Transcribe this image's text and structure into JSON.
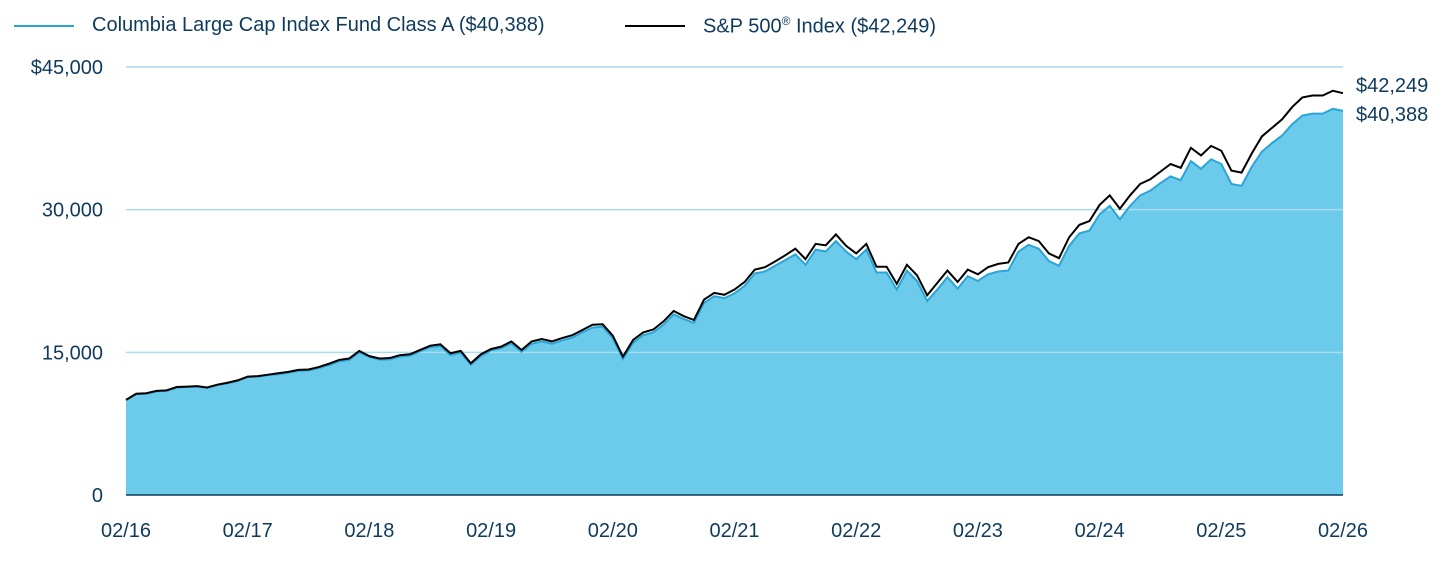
{
  "chart_data": {
    "type": "area",
    "legend": {
      "fund_label": "Columbia Large Cap Index Fund Class A ($40,388)",
      "index_name": "S&P 500",
      "index_mark": "®",
      "index_value": " Index ($42,249)"
    },
    "end_labels": {
      "index": "$42,249",
      "fund": "$40,388"
    },
    "y_ticks": [
      "$45,000",
      "30,000",
      "15,000",
      "0"
    ],
    "y_tick_values": [
      45000,
      30000,
      15000,
      0
    ],
    "ylim": [
      0,
      45000
    ],
    "x_ticks": [
      "02/16",
      "02/17",
      "02/18",
      "02/19",
      "02/20",
      "02/21",
      "02/22",
      "02/23",
      "02/24",
      "02/25",
      "02/26"
    ],
    "colors": {
      "fund_fill": "#6ccaea",
      "fund_line": "#2aa5d8",
      "index_line": "#000000",
      "grid": "#a9dcee",
      "axis": "#0e3a5c",
      "text": "#0e3a5c"
    },
    "series": [
      {
        "name": "Columbia Large Cap Index Fund Class A",
        "start": "02/16",
        "values": [
          10000,
          10600,
          10650,
          10900,
          10950,
          11300,
          11350,
          11400,
          11250,
          11550,
          11750,
          12000,
          12400,
          12450,
          12600,
          12700,
          12850,
          13050,
          13100,
          13350,
          13650,
          14050,
          14200,
          15000,
          14500,
          14250,
          14250,
          14550,
          14650,
          15100,
          15550,
          15650,
          14700,
          14950,
          13700,
          14600,
          15200,
          15450,
          15950,
          15050,
          15900,
          16150,
          15900,
          16250,
          16550,
          17100,
          17600,
          17700,
          16500,
          14300,
          16000,
          16800,
          17100,
          17900,
          19000,
          18500,
          18100,
          20200,
          20900,
          20700,
          21200,
          22000,
          23300,
          23500,
          24100,
          24700,
          25300,
          24200,
          25800,
          25600,
          26700,
          25600,
          24800,
          25800,
          23400,
          23400,
          21600,
          23600,
          22500,
          20400,
          21600,
          22900,
          21700,
          23000,
          22500,
          23200,
          23500,
          23600,
          25600,
          26300,
          25900,
          24600,
          24100,
          26200,
          27500,
          27800,
          29500,
          30400,
          29000,
          30400,
          31500,
          32000,
          32800,
          33500,
          33100,
          35100,
          34300,
          35300,
          34800,
          32700,
          32500,
          34500,
          36100,
          37000,
          37800,
          39000,
          39900,
          40100,
          40100,
          40600,
          40388
        ]
      },
      {
        "name": "S&P 500 Index",
        "start": "02/16",
        "values": [
          10000,
          10650,
          10700,
          10950,
          11000,
          11350,
          11400,
          11450,
          11300,
          11600,
          11800,
          12050,
          12450,
          12500,
          12650,
          12800,
          12950,
          13150,
          13200,
          13450,
          13800,
          14200,
          14350,
          15150,
          14600,
          14350,
          14400,
          14700,
          14800,
          15250,
          15700,
          15850,
          14900,
          15150,
          13850,
          14800,
          15350,
          15600,
          16150,
          15250,
          16150,
          16400,
          16150,
          16500,
          16800,
          17350,
          17900,
          17950,
          16750,
          14550,
          16300,
          17100,
          17400,
          18250,
          19350,
          18800,
          18400,
          20550,
          21250,
          21050,
          21600,
          22400,
          23700,
          23950,
          24550,
          25200,
          25900,
          24800,
          26400,
          26250,
          27400,
          26200,
          25400,
          26400,
          24000,
          24000,
          22200,
          24200,
          23100,
          21000,
          22300,
          23600,
          22400,
          23700,
          23200,
          23950,
          24300,
          24450,
          26400,
          27100,
          26700,
          25400,
          24900,
          27100,
          28400,
          28800,
          30500,
          31500,
          30100,
          31500,
          32700,
          33200,
          34000,
          34800,
          34400,
          36500,
          35700,
          36700,
          36200,
          34100,
          33900,
          35900,
          37700,
          38600,
          39500,
          40800,
          41800,
          42000,
          42000,
          42500,
          42249
        ]
      }
    ]
  }
}
